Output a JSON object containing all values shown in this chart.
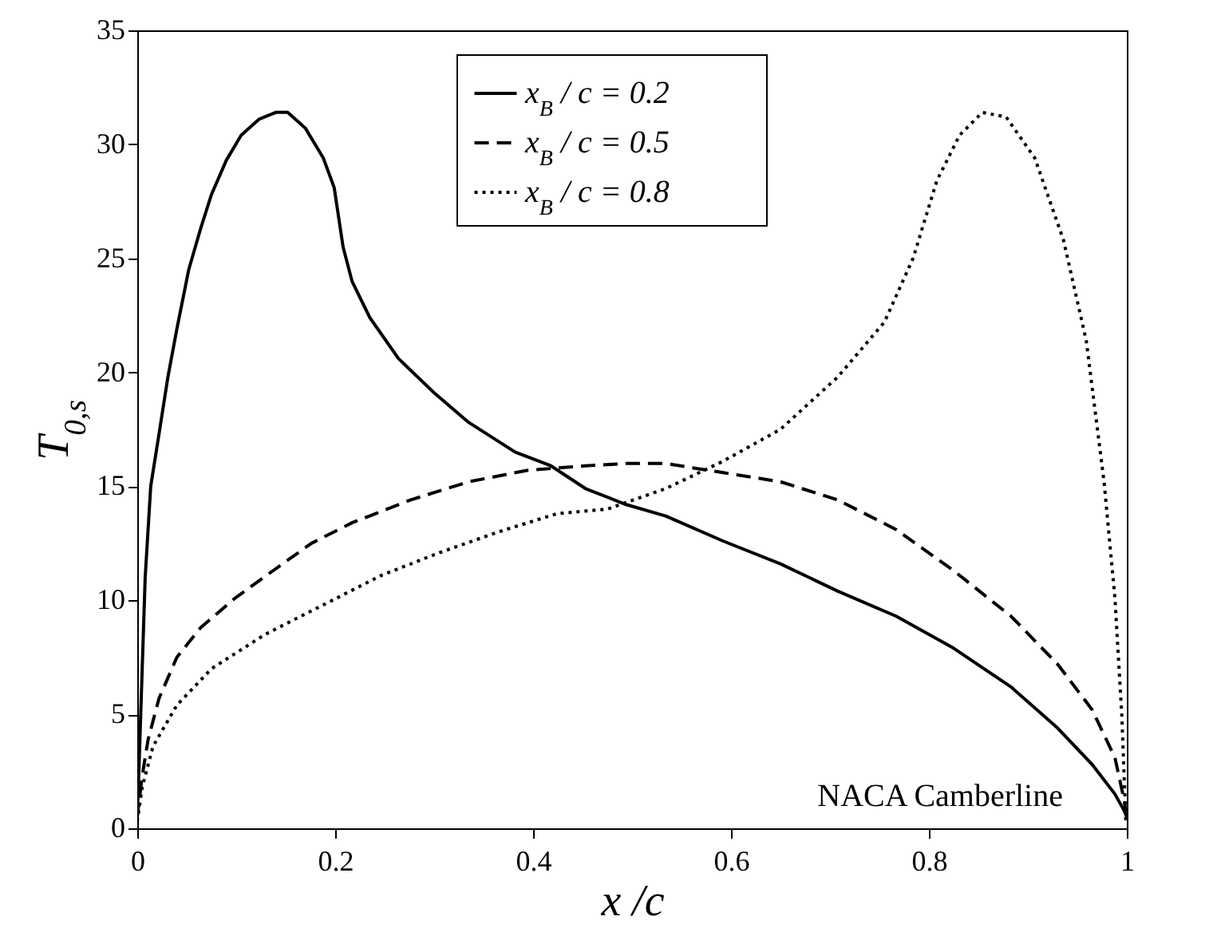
{
  "chart_data": {
    "type": "line",
    "xlabel": "x /c",
    "ylabel": "T$_{0,s}$",
    "xlim": [
      0,
      1
    ],
    "xticks": [
      0,
      0.2,
      0.4,
      0.6,
      0.8,
      1
    ],
    "ylim": [
      0,
      35
    ],
    "yticks": [
      0,
      5,
      10,
      15,
      20,
      25,
      30,
      35
    ],
    "grid": false,
    "legend": "top",
    "marker": "none",
    "annotations": [
      "NACA Camberline"
    ],
    "series": [
      {
        "name": "x$_{B}$ / c = 0.2",
        "color": "#000000",
        "line_style": "solid",
        "x": [
          0,
          0.002,
          0.005,
          0.008,
          0.0136,
          0.022,
          0.031,
          0.04,
          0.052,
          0.064,
          0.075,
          0.09,
          0.105,
          0.123,
          0.14,
          0.152,
          0.17,
          0.188,
          0.199,
          0.208,
          0.217,
          0.235,
          0.264,
          0.3,
          0.335,
          0.382,
          0.418,
          0.453,
          0.494,
          0.534,
          0.592,
          0.65,
          0.708,
          0.767,
          0.825,
          0.883,
          0.93,
          0.965,
          0.988,
          0.997,
          1
        ],
        "values": [
          0.5,
          3,
          7,
          11,
          15,
          17.3,
          19.8,
          21.9,
          24.5,
          26.3,
          27.8,
          29.3,
          30.4,
          31.1,
          31.4,
          31.4,
          30.7,
          29.4,
          28.1,
          25.5,
          24,
          22.4,
          20.6,
          19.1,
          17.8,
          16.5,
          15.9,
          14.9,
          14.2,
          13.7,
          12.6,
          11.6,
          10.4,
          9.3,
          7.9,
          6.2,
          4.4,
          2.8,
          1.5,
          0.8,
          0.5
        ]
      },
      {
        "name": "x$_{B}$ / c = 0.5",
        "color": "#000000",
        "line_style": "dashed",
        "x": [
          0,
          0.005,
          0.011,
          0.022,
          0.04,
          0.064,
          0.099,
          0.134,
          0.176,
          0.217,
          0.276,
          0.335,
          0.394,
          0.453,
          0.494,
          0.534,
          0.592,
          0.65,
          0.708,
          0.767,
          0.825,
          0.883,
          0.93,
          0.965,
          0.988,
          0.997,
          1
        ],
        "values": [
          0.5,
          2.3,
          3.9,
          5.7,
          7.5,
          8.8,
          10.1,
          11.2,
          12.5,
          13.4,
          14.4,
          15.2,
          15.7,
          15.9,
          16,
          16,
          15.6,
          15.2,
          14.4,
          13.1,
          11.3,
          9.3,
          7.2,
          5.2,
          3.1,
          1.3,
          0.5
        ]
      },
      {
        "name": "x$_{B}$ / c = 0.8",
        "color": "#000000",
        "line_style": "dotted",
        "x": [
          0,
          0.005,
          0.016,
          0.04,
          0.075,
          0.129,
          0.188,
          0.247,
          0.306,
          0.365,
          0.424,
          0.475,
          0.534,
          0.592,
          0.65,
          0.708,
          0.755,
          0.784,
          0.808,
          0.831,
          0.854,
          0.878,
          0.907,
          0.936,
          0.959,
          0.977,
          0.988,
          0.995,
          0.999
        ],
        "values": [
          0.3,
          1.8,
          3.6,
          5.4,
          7,
          8.5,
          9.8,
          11.1,
          12.1,
          13,
          13.8,
          14,
          14.9,
          16.1,
          17.5,
          19.8,
          22.2,
          25,
          28.4,
          30.4,
          31.4,
          31.2,
          29.4,
          25.8,
          21.4,
          15.2,
          10.1,
          4.9,
          0.3
        ]
      }
    ]
  }
}
